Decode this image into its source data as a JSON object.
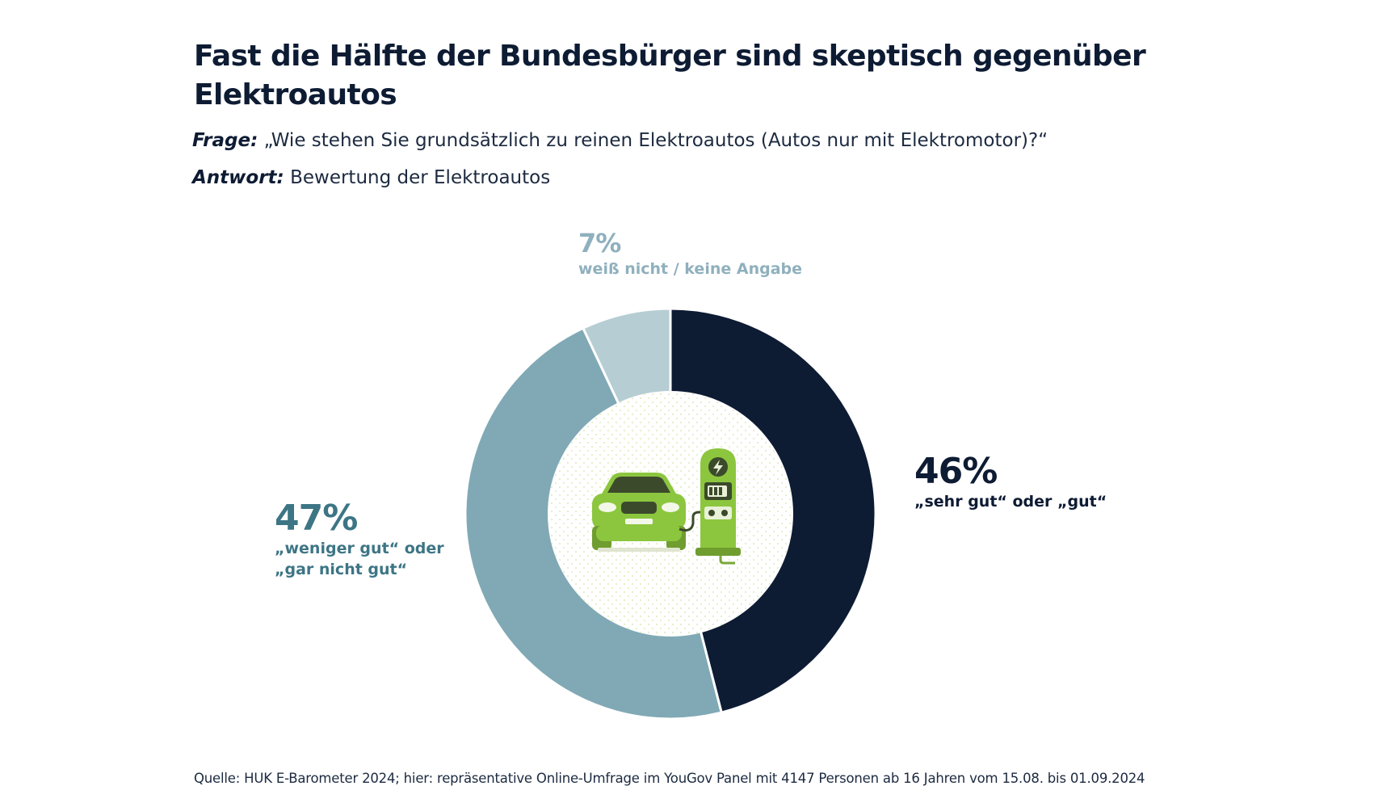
{
  "title": "Fast die Hälfte der Bundesbürger sind skeptisch gegenüber Elektroautos",
  "question": {
    "key": "Frage:",
    "text": "„Wie stehen Sie grundsätzlich zu reinen Elektroautos (Autos nur mit Elektromotor)?“"
  },
  "answer": {
    "key": "Antwort:",
    "text": "Bewertung der Elektroautos"
  },
  "source": "Quelle: HUK E-Barometer 2024; hier: repräsentative Online-Umfrage im YouGov Panel mit 4147 Personen ab 16 Jahren vom 15.08. bis 01.09.2024",
  "center_icon": "electric-car-charging-station-icon",
  "chart_data": {
    "type": "pie",
    "variant": "donut",
    "title": "Fast die Hälfte der Bundesbürger sind skeptisch gegenüber Elektroautos",
    "slices": [
      {
        "label_value": "46%",
        "label_lines": [
          "„sehr gut“ oder „gut“"
        ],
        "value": 46,
        "color": "#0d1b33"
      },
      {
        "label_value": "47%",
        "label_lines": [
          "„weniger gut“ oder",
          "„gar nicht gut“"
        ],
        "value": 47,
        "color": "#80a9b5"
      },
      {
        "label_value": "7%",
        "label_lines": [
          "weiß nicht / keine Angabe"
        ],
        "value": 7,
        "color": "#b6cdd4"
      }
    ],
    "start_angle": "12 o'clock",
    "direction": "clockwise",
    "slice_separator_color": "#ffffff"
  }
}
